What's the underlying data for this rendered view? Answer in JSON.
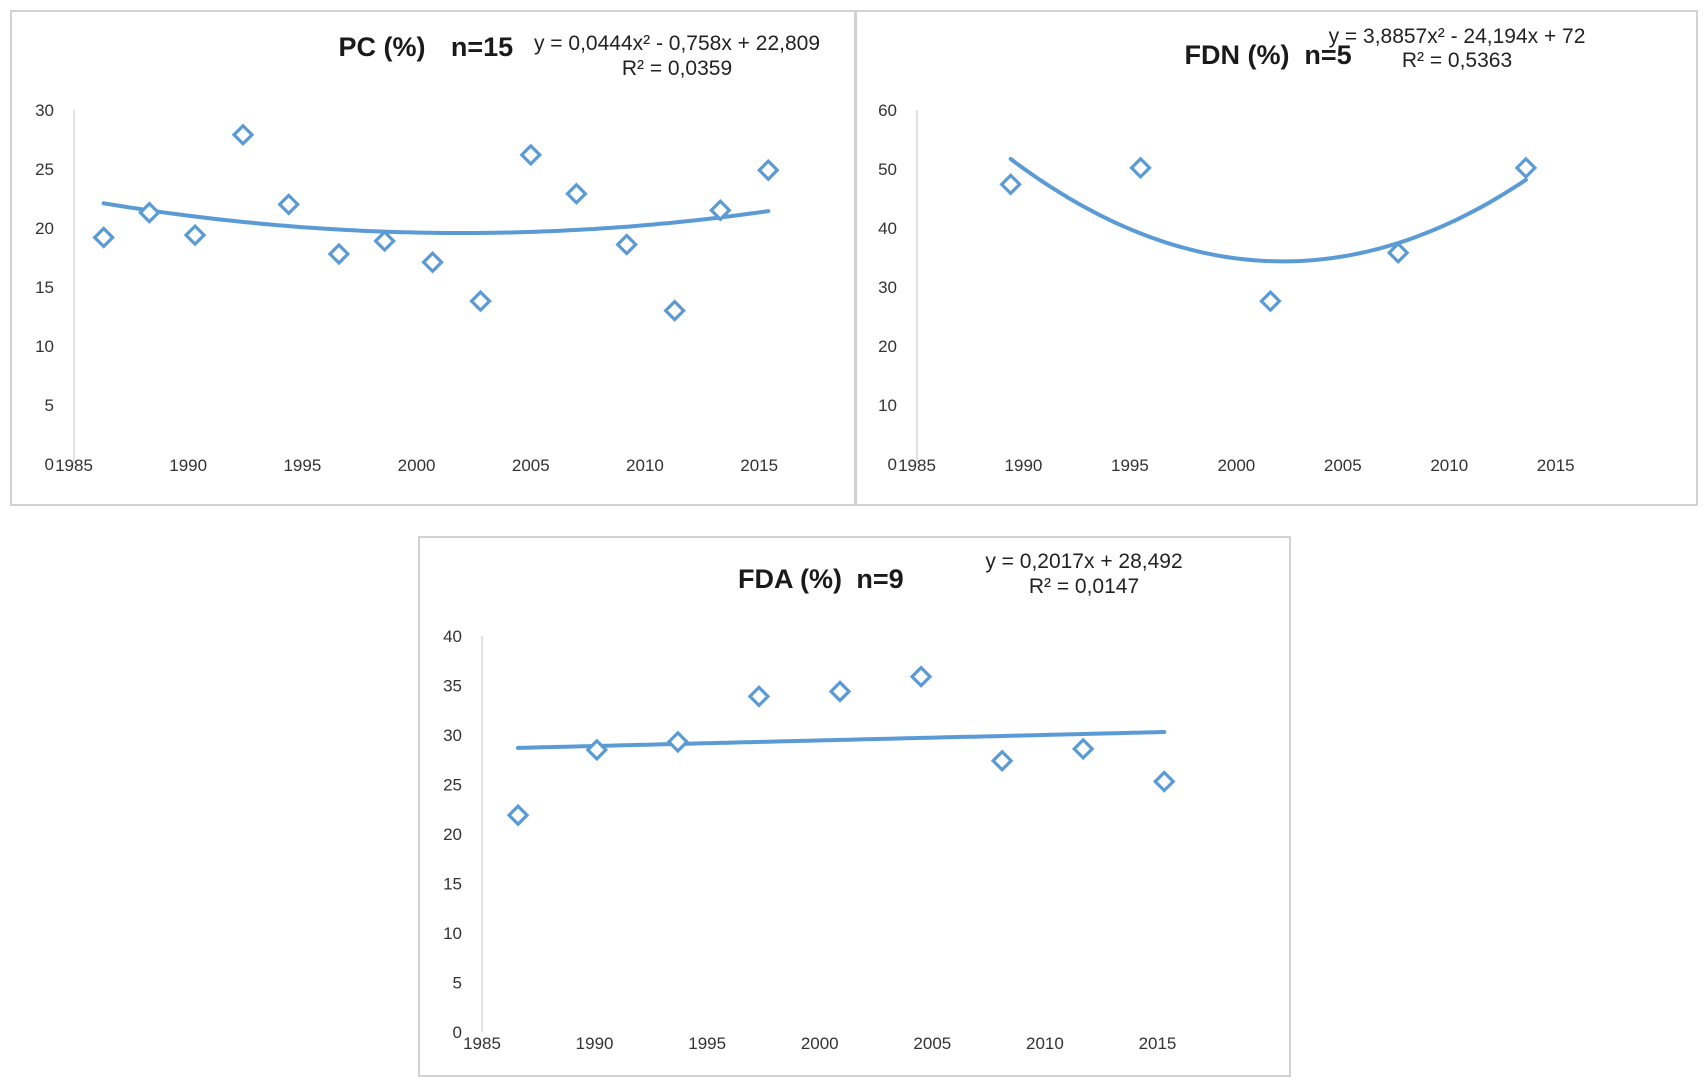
{
  "colors": {
    "series": "#5b9bd5",
    "axis": "#d9d9d9",
    "border": "#d2d2d2"
  },
  "chart_data": [
    {
      "type": "scatter",
      "title": "PC (%)",
      "n_label": "n=15",
      "equation": "y = 0,0444x² - 0,758x + 22,809",
      "r2": "R² = 0,0359",
      "trendline": {
        "kind": "polynomial",
        "coef": [
          0.0444,
          -0.758,
          22.809
        ]
      },
      "xlim": [
        1985,
        2016
      ],
      "x_ticks": [
        1985,
        1990,
        1995,
        2000,
        2005,
        2010,
        2015
      ],
      "ylim": [
        0,
        30
      ],
      "y_ticks": [
        0,
        5,
        10,
        15,
        20,
        25,
        30
      ],
      "points": [
        {
          "x": 1986.3,
          "y": 19.2
        },
        {
          "x": 1988.3,
          "y": 21.3
        },
        {
          "x": 1990.3,
          "y": 19.4
        },
        {
          "x": 1992.4,
          "y": 27.9
        },
        {
          "x": 1994.4,
          "y": 22.0
        },
        {
          "x": 1996.6,
          "y": 17.8
        },
        {
          "x": 1998.6,
          "y": 18.9
        },
        {
          "x": 2000.7,
          "y": 17.1
        },
        {
          "x": 2002.8,
          "y": 13.8
        },
        {
          "x": 2005.0,
          "y": 26.2
        },
        {
          "x": 2007.0,
          "y": 22.9
        },
        {
          "x": 2009.2,
          "y": 18.6
        },
        {
          "x": 2011.3,
          "y": 13.0
        },
        {
          "x": 2013.3,
          "y": 21.5
        },
        {
          "x": 2015.4,
          "y": 24.9
        }
      ]
    },
    {
      "type": "scatter",
      "title": "FDN (%)",
      "n_label": "n=5",
      "equation": "y = 3,8857x² - 24,194x + 72",
      "r2": "R² = 0,5363",
      "trendline": {
        "kind": "polynomial",
        "coef": [
          3.8857,
          -24.194,
          72
        ]
      },
      "xlim": [
        1985,
        2016
      ],
      "x_ticks": [
        1985,
        1990,
        1995,
        2000,
        2005,
        2010,
        2015
      ],
      "ylim": [
        0,
        60
      ],
      "y_ticks": [
        0,
        10,
        20,
        30,
        40,
        50,
        60
      ],
      "points": [
        {
          "x": 1989.4,
          "y": 47.4
        },
        {
          "x": 1995.5,
          "y": 50.2
        },
        {
          "x": 2001.6,
          "y": 27.6
        },
        {
          "x": 2007.6,
          "y": 35.8
        },
        {
          "x": 2013.6,
          "y": 50.2
        }
      ]
    },
    {
      "type": "scatter",
      "title": "FDA (%)",
      "n_label": "n=9",
      "equation": "y = 0,2017x + 28,492",
      "r2": "R² = 0,0147",
      "trendline": {
        "kind": "linear",
        "coef": [
          0.2017,
          28.492
        ]
      },
      "xlim": [
        1985,
        2016
      ],
      "x_ticks": [
        1985,
        1990,
        1995,
        2000,
        2005,
        2010,
        2015
      ],
      "ylim": [
        0,
        40
      ],
      "y_ticks": [
        0,
        5,
        10,
        15,
        20,
        25,
        30,
        35,
        40
      ],
      "points": [
        {
          "x": 1986.6,
          "y": 21.9
        },
        {
          "x": 1990.1,
          "y": 28.5
        },
        {
          "x": 1993.7,
          "y": 29.3
        },
        {
          "x": 1997.3,
          "y": 33.9
        },
        {
          "x": 2000.9,
          "y": 34.4
        },
        {
          "x": 2004.5,
          "y": 35.9
        },
        {
          "x": 2008.1,
          "y": 27.4
        },
        {
          "x": 2011.7,
          "y": 28.6
        },
        {
          "x": 2015.3,
          "y": 25.3
        }
      ]
    }
  ]
}
